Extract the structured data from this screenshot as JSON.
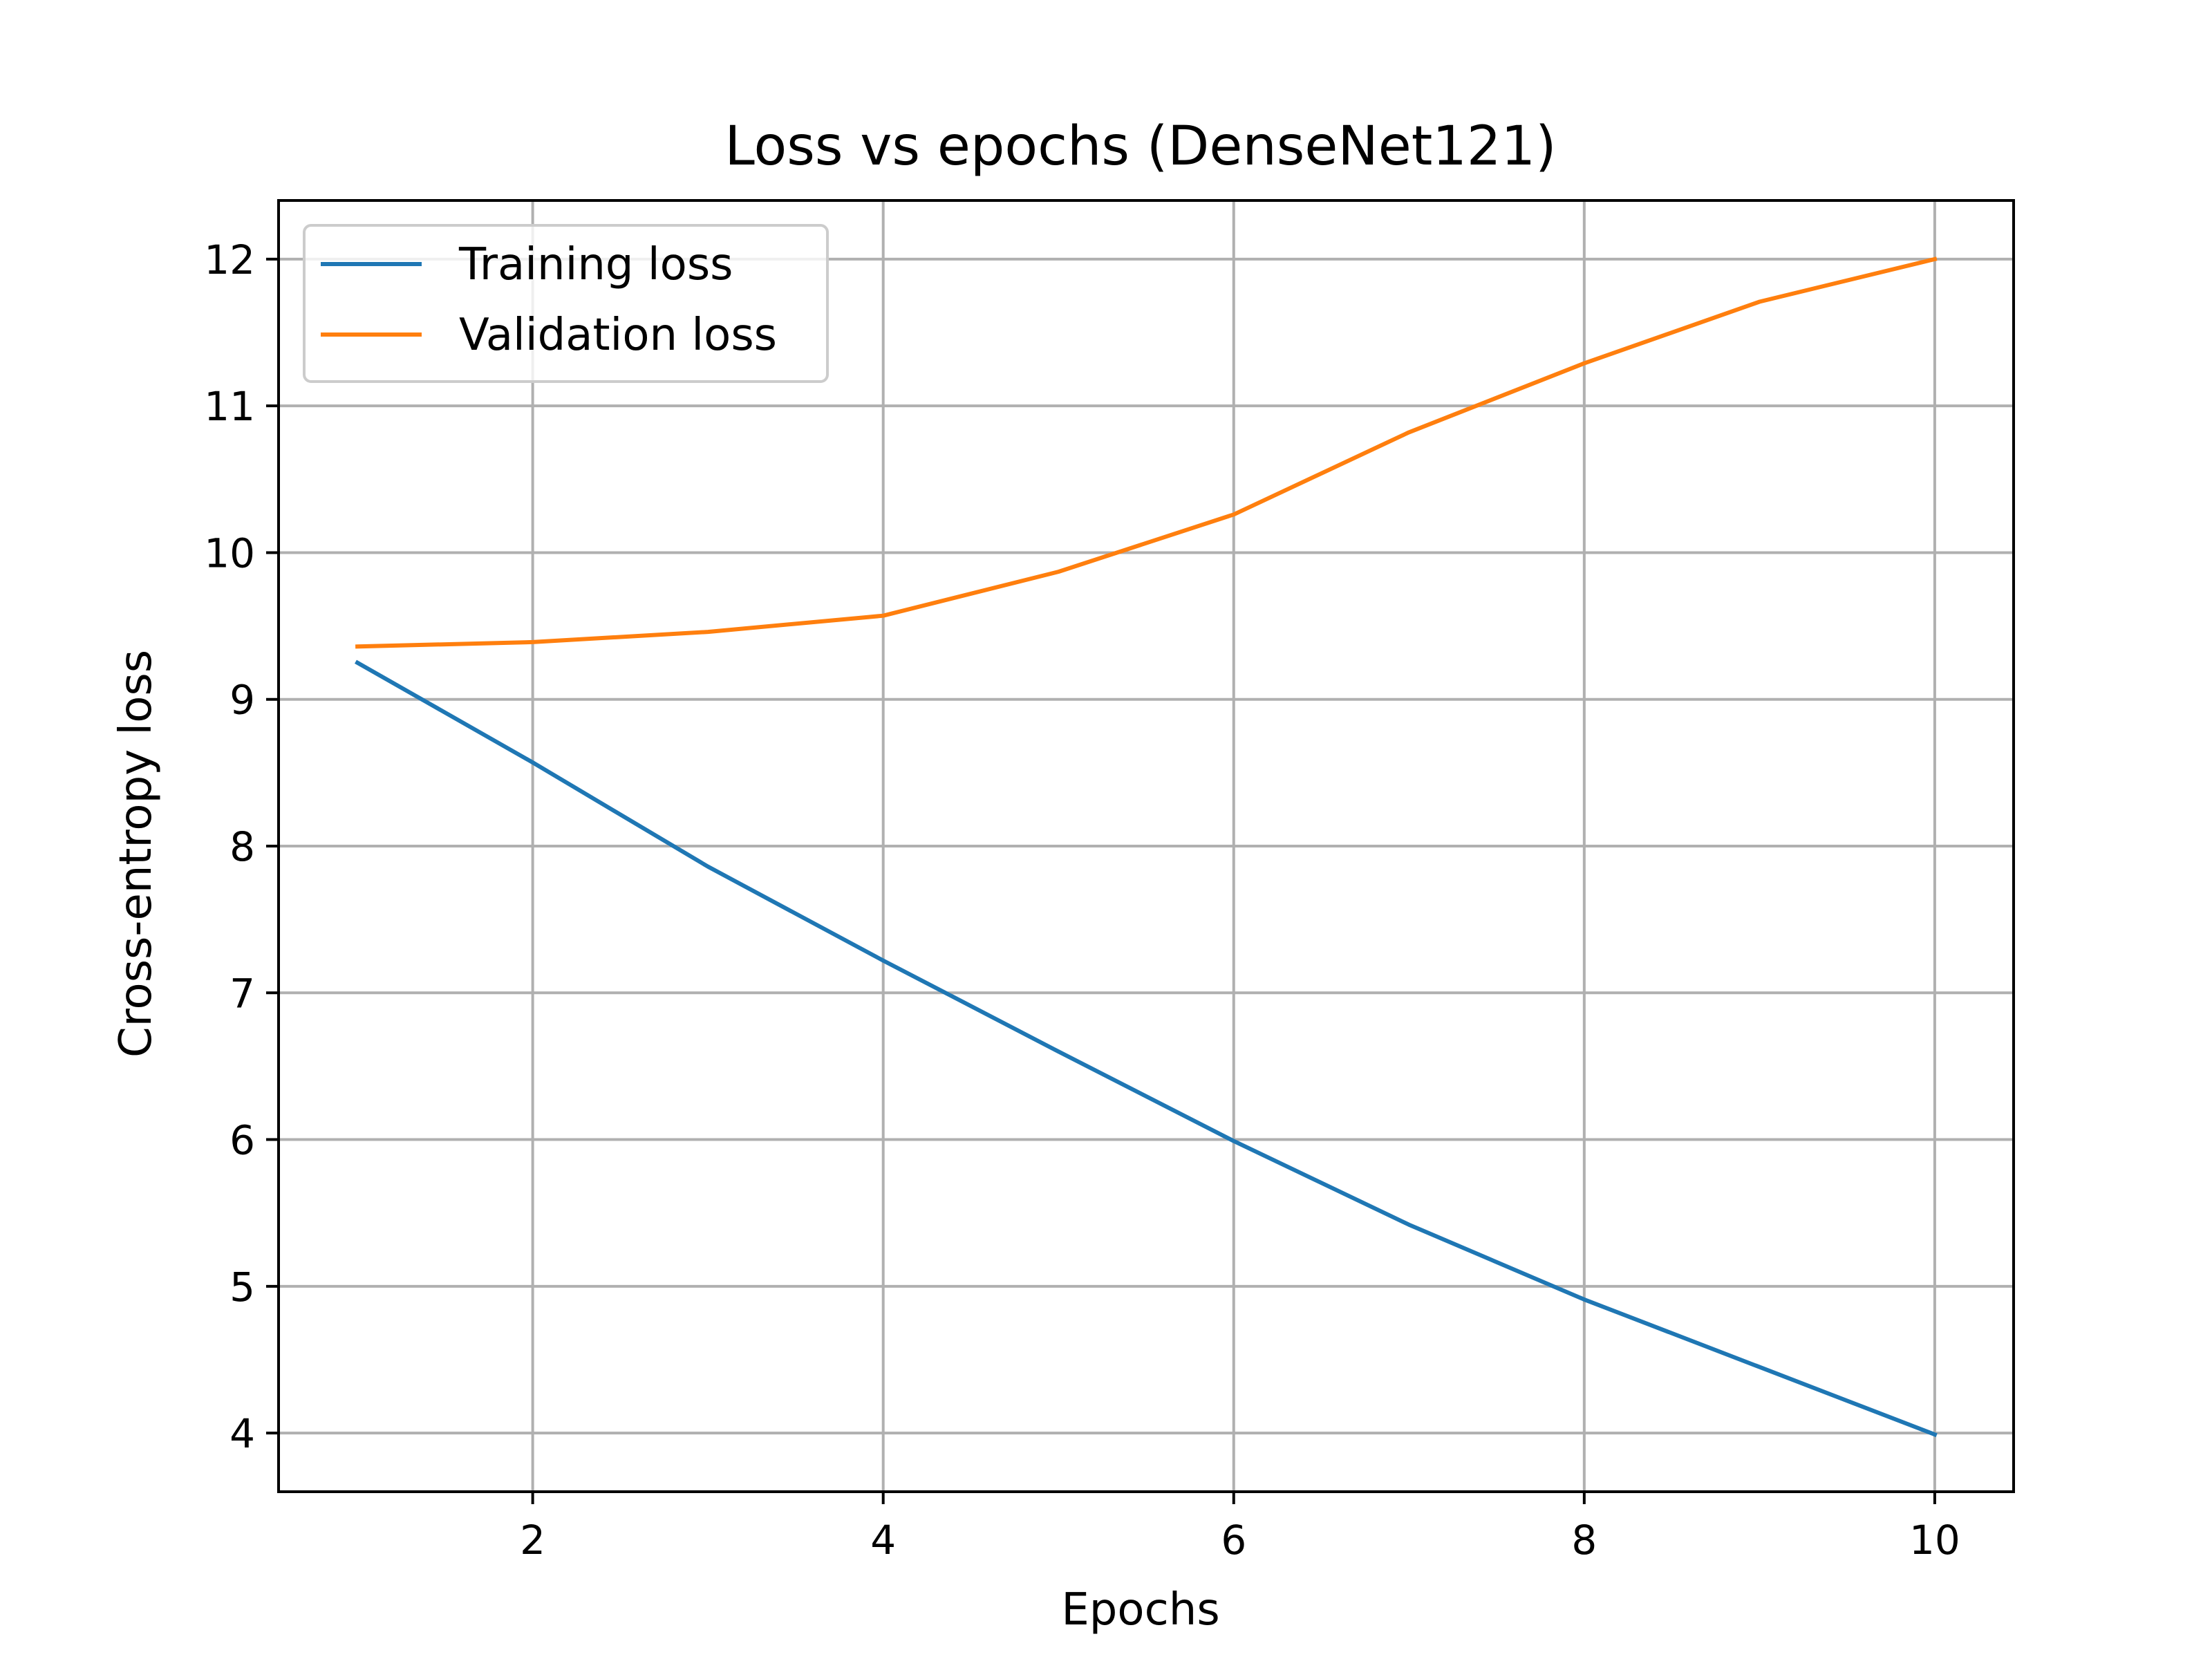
{
  "chart_data": {
    "type": "line",
    "title": "Loss vs epochs (DenseNet121)",
    "xlabel": "Epochs",
    "ylabel": "Cross-entropy loss",
    "x": [
      1,
      2,
      3,
      4,
      5,
      6,
      7,
      8,
      9,
      10
    ],
    "xlim": [
      0.55,
      10.45
    ],
    "ylim": [
      3.6,
      12.4
    ],
    "xticks": [
      2,
      4,
      6,
      8,
      10
    ],
    "yticks": [
      4,
      5,
      6,
      7,
      8,
      9,
      10,
      11,
      12
    ],
    "xtick_labels": [
      "2",
      "4",
      "6",
      "8",
      "10"
    ],
    "ytick_labels": [
      "4",
      "5",
      "6",
      "7",
      "8",
      "9",
      "10",
      "11",
      "12"
    ],
    "grid": true,
    "legend_position": "upper-left",
    "series": [
      {
        "name": "Training loss",
        "color": "#1f77b4",
        "values": [
          9.25,
          8.57,
          7.86,
          7.22,
          6.6,
          5.99,
          5.42,
          4.91,
          4.45,
          3.99
        ]
      },
      {
        "name": "Validation loss",
        "color": "#ff7f0e",
        "values": [
          9.36,
          9.39,
          9.46,
          9.57,
          9.87,
          10.26,
          10.82,
          11.29,
          11.71,
          12.0
        ]
      }
    ]
  }
}
